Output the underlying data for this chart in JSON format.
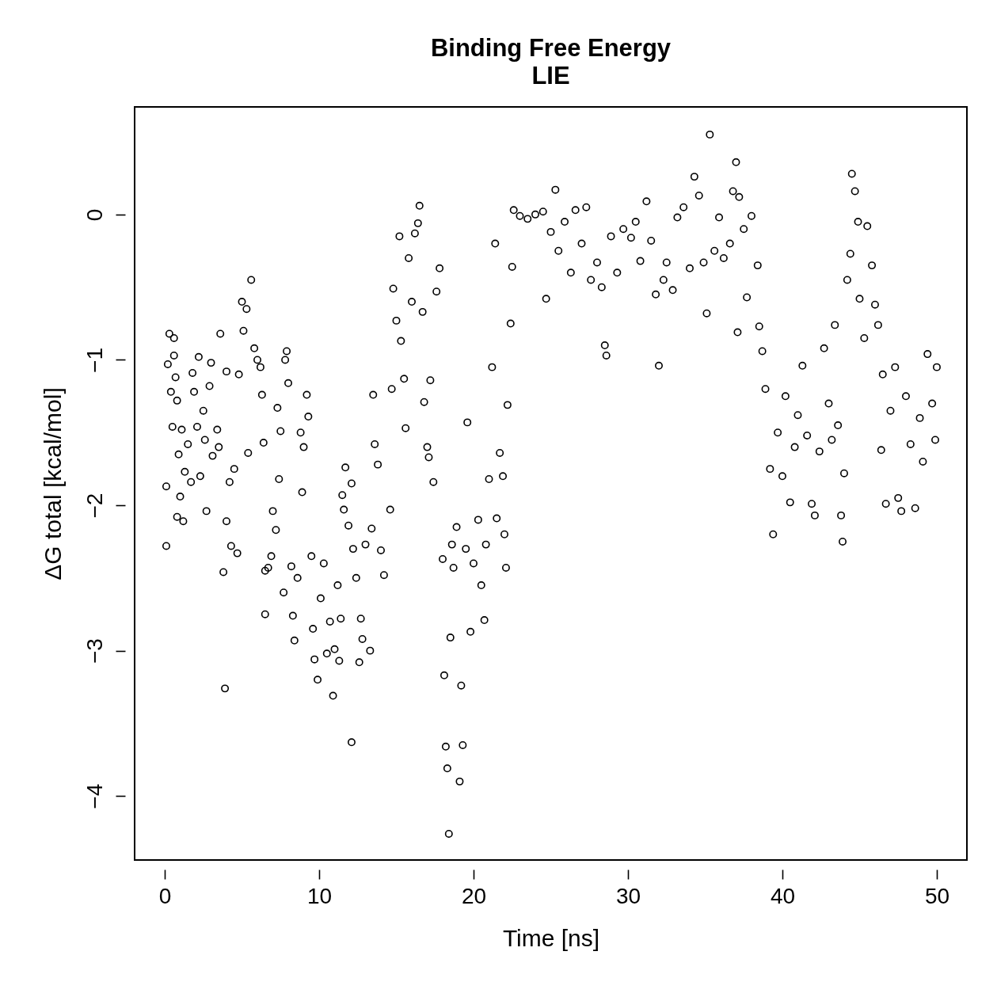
{
  "chart_data": {
    "type": "scatter",
    "title": "Binding Free Energy",
    "subtitle": "LIE",
    "xlabel": "Time [ns]",
    "ylabel": "ΔG total [kcal/mol]",
    "xlim": [
      -1.95,
      51.95
    ],
    "ylim": [
      -4.44,
      0.74
    ],
    "xticks": [
      0,
      10,
      20,
      30,
      40,
      50
    ],
    "yticks": [
      -4,
      -3,
      -2,
      -1,
      0
    ],
    "marker": "circle",
    "series": [
      {
        "color": "#000000",
        "x": [
          0.1,
          0.1,
          0.2,
          0.3,
          0.4,
          0.5,
          0.6,
          0.6,
          0.7,
          0.8,
          0.8,
          0.9,
          1.0,
          1.1,
          1.2,
          1.3,
          1.5,
          1.7,
          1.8,
          1.9,
          2.1,
          2.2,
          2.3,
          2.5,
          2.6,
          2.7,
          2.9,
          3.0,
          3.1,
          3.4,
          3.5,
          3.6,
          3.8,
          3.9,
          4.0,
          4.0,
          4.2,
          4.3,
          4.5,
          4.7,
          4.8,
          5.0,
          5.1,
          5.3,
          5.4,
          5.6,
          5.8,
          6.0,
          6.2,
          6.3,
          6.4,
          6.5,
          6.5,
          6.7,
          6.9,
          7.0,
          7.2,
          7.3,
          7.4,
          7.5,
          7.7,
          7.8,
          7.9,
          8.0,
          8.2,
          8.3,
          8.4,
          8.6,
          8.8,
          8.9,
          9.0,
          9.2,
          9.3,
          9.5,
          9.6,
          9.7,
          9.9,
          10.1,
          10.3,
          10.5,
          10.7,
          10.9,
          11.0,
          11.2,
          11.3,
          11.4,
          11.5,
          11.6,
          11.7,
          11.9,
          12.1,
          12.1,
          12.2,
          12.4,
          12.6,
          12.7,
          12.8,
          13.0,
          13.3,
          13.4,
          13.5,
          13.6,
          13.8,
          14.0,
          14.2,
          14.6,
          14.7,
          14.8,
          15.0,
          15.2,
          15.3,
          15.5,
          15.6,
          15.8,
          16.0,
          16.2,
          16.4,
          16.5,
          16.7,
          16.8,
          17.0,
          17.1,
          17.2,
          17.4,
          17.6,
          17.8,
          18.0,
          18.1,
          18.2,
          18.3,
          18.4,
          18.5,
          18.6,
          18.7,
          18.9,
          19.1,
          19.2,
          19.3,
          19.5,
          19.6,
          19.8,
          20.0,
          20.3,
          20.5,
          20.7,
          20.8,
          21.0,
          21.2,
          21.4,
          21.5,
          21.7,
          21.9,
          22.0,
          22.1,
          22.2,
          22.4,
          22.5,
          22.6,
          23.0,
          23.5,
          24.0,
          24.5,
          24.7,
          25.0,
          25.3,
          25.5,
          25.9,
          26.3,
          26.6,
          27.0,
          27.3,
          27.6,
          28.0,
          28.3,
          28.5,
          28.6,
          28.9,
          29.3,
          29.7,
          30.2,
          30.5,
          30.8,
          31.2,
          31.5,
          31.8,
          32.0,
          32.3,
          32.5,
          32.9,
          33.2,
          33.6,
          34.0,
          34.3,
          34.6,
          34.9,
          35.1,
          35.3,
          35.6,
          35.9,
          36.2,
          36.6,
          36.8,
          37.0,
          37.2,
          37.1,
          37.5,
          37.7,
          38.0,
          38.4,
          38.5,
          38.7,
          38.9,
          39.2,
          39.4,
          39.7,
          40.0,
          40.2,
          40.5,
          40.8,
          41.0,
          41.3,
          41.6,
          41.9,
          42.1,
          42.4,
          42.7,
          43.0,
          43.2,
          43.4,
          43.6,
          43.8,
          43.9,
          44.0,
          44.2,
          44.4,
          44.5,
          44.7,
          44.9,
          45.0,
          45.3,
          45.5,
          45.8,
          46.0,
          46.2,
          46.4,
          46.5,
          46.7,
          47.0,
          47.3,
          47.5,
          47.7,
          48.0,
          48.3,
          48.6,
          48.9,
          49.1,
          49.4,
          49.7,
          49.9,
          50.0
        ],
        "values": [
          -2.28,
          -1.87,
          -1.03,
          -0.82,
          -1.22,
          -1.46,
          -0.85,
          -0.97,
          -1.12,
          -1.28,
          -2.08,
          -1.65,
          -1.94,
          -1.48,
          -2.11,
          -1.77,
          -1.58,
          -1.84,
          -1.09,
          -1.22,
          -1.46,
          -0.98,
          -1.8,
          -1.35,
          -1.55,
          -2.04,
          -1.18,
          -1.02,
          -1.66,
          -1.48,
          -1.6,
          -0.82,
          -2.46,
          -3.26,
          -1.08,
          -2.11,
          -1.84,
          -2.28,
          -1.75,
          -2.33,
          -1.1,
          -0.6,
          -0.8,
          -0.65,
          -1.64,
          -0.45,
          -0.92,
          -1.0,
          -1.05,
          -1.24,
          -1.57,
          -2.45,
          -2.75,
          -2.43,
          -2.35,
          -2.04,
          -2.17,
          -1.33,
          -1.82,
          -1.49,
          -2.6,
          -1.0,
          -0.94,
          -1.16,
          -2.42,
          -2.76,
          -2.93,
          -2.5,
          -1.5,
          -1.91,
          -1.6,
          -1.24,
          -1.39,
          -2.35,
          -2.85,
          -3.06,
          -3.2,
          -2.64,
          -2.4,
          -3.02,
          -2.8,
          -3.31,
          -2.99,
          -2.55,
          -3.07,
          -2.78,
          -1.93,
          -2.03,
          -1.74,
          -2.14,
          -3.63,
          -1.85,
          -2.3,
          -2.5,
          -3.08,
          -2.78,
          -2.92,
          -2.27,
          -3.0,
          -2.16,
          -1.24,
          -1.58,
          -1.72,
          -2.31,
          -2.48,
          -2.03,
          -1.2,
          -0.51,
          -0.73,
          -0.15,
          -0.87,
          -1.13,
          -1.47,
          -0.3,
          -0.6,
          -0.13,
          -0.06,
          0.06,
          -0.67,
          -1.29,
          -1.6,
          -1.67,
          -1.14,
          -1.84,
          -0.53,
          -0.37,
          -2.37,
          -3.17,
          -3.66,
          -3.81,
          -4.26,
          -2.91,
          -2.27,
          -2.43,
          -2.15,
          -3.9,
          -3.24,
          -3.65,
          -2.3,
          -1.43,
          -2.87,
          -2.4,
          -2.1,
          -2.55,
          -2.79,
          -2.27,
          -1.82,
          -1.05,
          -0.2,
          -2.09,
          -1.64,
          -1.8,
          -2.2,
          -2.43,
          -1.31,
          -0.75,
          -0.36,
          0.03,
          -0.01,
          -0.03,
          0.0,
          0.02,
          -0.58,
          -0.12,
          0.17,
          -0.25,
          -0.05,
          -0.4,
          0.03,
          -0.2,
          0.05,
          -0.45,
          -0.33,
          -0.5,
          -0.9,
          -0.97,
          -0.15,
          -0.4,
          -0.1,
          -0.16,
          -0.05,
          -0.32,
          0.09,
          -0.18,
          -0.55,
          -1.04,
          -0.45,
          -0.33,
          -0.52,
          -0.02,
          0.05,
          -0.37,
          0.26,
          0.13,
          -0.33,
          -0.68,
          0.55,
          -0.25,
          -0.02,
          -0.3,
          -0.2,
          0.16,
          0.36,
          0.12,
          -0.81,
          -0.1,
          -0.57,
          -0.01,
          -0.35,
          -0.77,
          -0.94,
          -1.2,
          -1.75,
          -2.2,
          -1.5,
          -1.8,
          -1.25,
          -1.98,
          -1.6,
          -1.38,
          -1.04,
          -1.52,
          -1.99,
          -2.07,
          -1.63,
          -0.92,
          -1.3,
          -1.55,
          -0.76,
          -1.45,
          -2.07,
          -2.25,
          -1.78,
          -0.45,
          -0.27,
          0.28,
          0.16,
          -0.05,
          -0.58,
          -0.85,
          -0.08,
          -0.35,
          -0.62,
          -0.76,
          -1.62,
          -1.1,
          -1.99,
          -1.35,
          -1.05,
          -1.95,
          -2.04,
          -1.25,
          -1.58,
          -2.02,
          -1.4,
          -1.7,
          -0.96,
          -1.3,
          -1.55,
          -1.05
        ]
      }
    ]
  }
}
